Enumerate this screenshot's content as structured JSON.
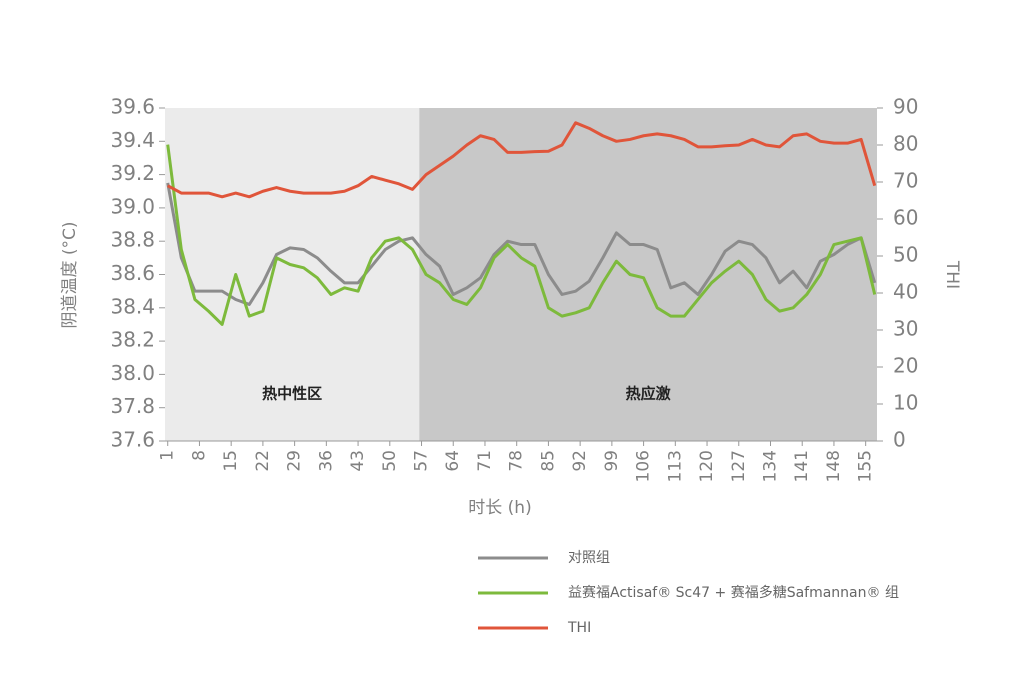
{
  "chart_data": {
    "type": "line",
    "x_label": "时长 (h)",
    "y_label": "阴道温度 (°C)",
    "y2_label": "THI",
    "x": [
      1,
      4,
      7,
      10,
      13,
      16,
      19,
      22,
      25,
      28,
      31,
      34,
      37,
      40,
      43,
      46,
      49,
      52,
      55,
      58,
      61,
      64,
      67,
      70,
      73,
      76,
      79,
      82,
      85,
      88,
      91,
      94,
      97,
      100,
      103,
      106,
      109,
      112,
      115,
      118,
      121,
      124,
      127,
      130,
      133,
      136,
      139,
      142,
      145,
      148,
      151,
      154,
      157
    ],
    "series": [
      {
        "name": "对照组",
        "color": "#8c8c8c",
        "values": [
          39.15,
          38.7,
          38.5,
          38.5,
          38.5,
          38.45,
          38.42,
          38.55,
          38.72,
          38.76,
          38.75,
          38.7,
          38.62,
          38.55,
          38.55,
          38.65,
          38.75,
          38.8,
          38.82,
          38.72,
          38.65,
          38.48,
          38.52,
          38.58,
          38.72,
          38.8,
          38.78,
          38.78,
          38.6,
          38.48,
          38.5,
          38.56,
          38.7,
          38.85,
          38.78,
          38.78,
          38.75,
          38.52,
          38.55,
          38.48,
          38.6,
          38.74,
          38.8,
          38.78,
          38.7,
          38.55,
          38.62,
          38.52,
          38.68,
          38.72,
          38.78,
          38.82,
          38.55
        ]
      },
      {
        "name": "益赛福Actisaf® Sc47 + 赛福多糖Safmannan® 组",
        "color": "#7dba3c",
        "values": [
          39.38,
          38.75,
          38.45,
          38.38,
          38.3,
          38.6,
          38.35,
          38.38,
          38.7,
          38.66,
          38.64,
          38.58,
          38.48,
          38.52,
          38.5,
          38.7,
          38.8,
          38.82,
          38.75,
          38.6,
          38.55,
          38.45,
          38.42,
          38.52,
          38.7,
          38.78,
          38.7,
          38.65,
          38.4,
          38.35,
          38.37,
          38.4,
          38.55,
          38.68,
          38.6,
          38.58,
          38.4,
          38.35,
          38.35,
          38.45,
          38.55,
          38.62,
          38.68,
          38.6,
          38.45,
          38.38,
          38.4,
          38.48,
          38.6,
          38.78,
          38.8,
          38.82,
          38.48
        ]
      },
      {
        "name": "THI",
        "color": "#e0553a",
        "axis": "y2",
        "values": [
          69,
          67,
          67,
          67,
          66,
          67,
          66,
          67.5,
          68.5,
          67.5,
          67,
          67,
          67,
          67.5,
          69,
          71.5,
          70.5,
          69.5,
          68,
          72,
          74.5,
          77,
          80,
          82.5,
          81.5,
          78,
          78,
          78.2,
          78.3,
          80,
          86,
          84.5,
          82.5,
          81,
          81.5,
          82.5,
          83,
          82.5,
          81.5,
          79.5,
          79.5,
          79.8,
          80,
          81.5,
          80,
          79.5,
          82.5,
          83,
          81,
          80.5,
          80.5,
          81.5,
          69
        ]
      }
    ],
    "regions": [
      {
        "label": "热中性区",
        "from": 0.4,
        "to": 56.5,
        "color": "#ebebeb"
      },
      {
        "label": "热应激",
        "from": 56.5,
        "to": 157.5,
        "color": "#c8c8c8"
      }
    ],
    "xlim": [
      0.4,
      157.5
    ],
    "xticks": [
      1,
      8,
      15,
      22,
      29,
      36,
      43,
      50,
      57,
      64,
      71,
      78,
      85,
      92,
      99,
      106,
      113,
      120,
      127,
      134,
      141,
      148,
      155
    ],
    "ylim": [
      37.6,
      39.6
    ],
    "yticks": [
      37.6,
      37.8,
      {
        "value": 38,
        "label": "38.0"
      },
      38.2,
      38.4,
      38.6,
      38.8,
      {
        "value": 39,
        "label": "39.0"
      },
      39.2,
      39.4,
      39.6
    ],
    "y2lim": [
      0,
      90
    ],
    "y2ticks": [
      0,
      10,
      20,
      30,
      40,
      50,
      60,
      70,
      80,
      90
    ]
  }
}
